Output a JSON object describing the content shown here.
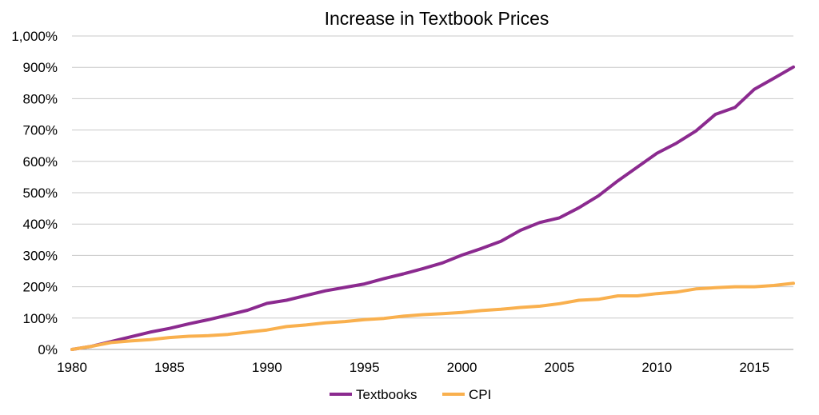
{
  "chart_data": {
    "type": "line",
    "title": "Increase in Textbook Prices",
    "xlabel": "",
    "ylabel": "",
    "xlim": [
      1980,
      2017
    ],
    "ylim": [
      0,
      1000
    ],
    "x_ticks": [
      1980,
      1985,
      1990,
      1995,
      2000,
      2005,
      2010,
      2015
    ],
    "x_tick_labels": [
      "1980",
      "1985",
      "1990",
      "1995",
      "2000",
      "2005",
      "2010",
      "2015"
    ],
    "y_ticks": [
      0,
      100,
      200,
      300,
      400,
      500,
      600,
      700,
      800,
      900,
      1000
    ],
    "y_tick_labels": [
      "0%",
      "100%",
      "200%",
      "300%",
      "400%",
      "500%",
      "600%",
      "700%",
      "800%",
      "900%",
      "1,000%"
    ],
    "grid": true,
    "legend_position": "bottom",
    "x": [
      1980,
      1981,
      1982,
      1983,
      1984,
      1985,
      1986,
      1987,
      1988,
      1989,
      1990,
      1991,
      1992,
      1993,
      1994,
      1995,
      1996,
      1997,
      1998,
      1999,
      2000,
      2001,
      2002,
      2003,
      2004,
      2005,
      2006,
      2007,
      2008,
      2009,
      2010,
      2011,
      2012,
      2013,
      2014,
      2015,
      2016,
      2017
    ],
    "series": [
      {
        "name": "Textbooks",
        "color": "#8b2a8f",
        "values": [
          0,
          10,
          25,
          40,
          55,
          67,
          82,
          95,
          110,
          125,
          147,
          157,
          172,
          187,
          198,
          209,
          226,
          241,
          258,
          276,
          301,
          322,
          345,
          380,
          405,
          420,
          452,
          490,
          538,
          582,
          626,
          658,
          697,
          750,
          772,
          830,
          865,
          901
        ]
      },
      {
        "name": "CPI",
        "color": "#f9b04e",
        "values": [
          0,
          10,
          22,
          27,
          31,
          38,
          42,
          44,
          48,
          55,
          62,
          73,
          78,
          85,
          89,
          95,
          99,
          106,
          111,
          114,
          118,
          124,
          128,
          134,
          138,
          146,
          157,
          160,
          171,
          171,
          178,
          183,
          193,
          197,
          200,
          200,
          204,
          211
        ]
      }
    ]
  }
}
